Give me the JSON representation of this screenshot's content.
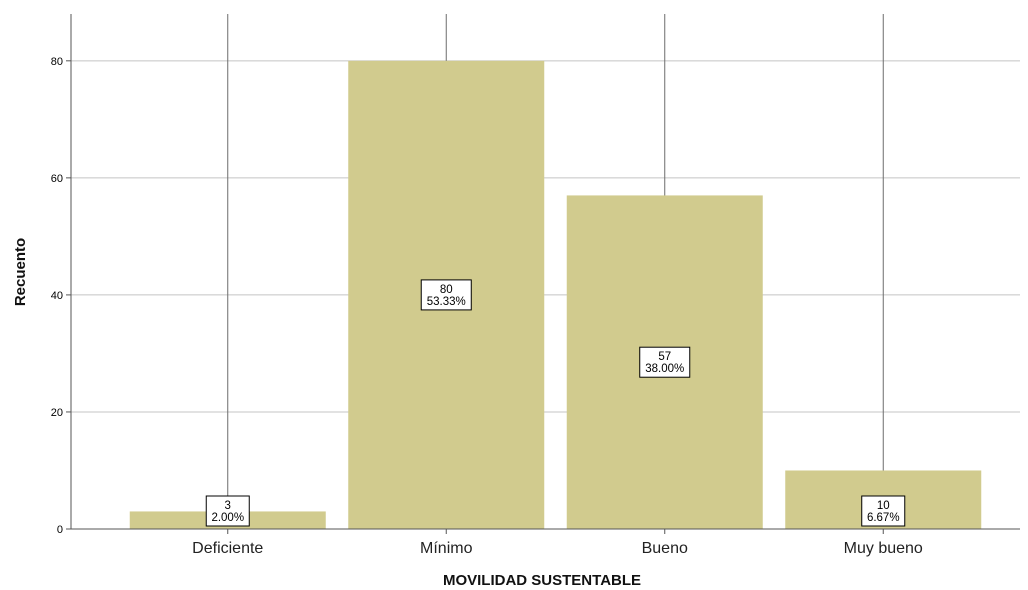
{
  "chart_data": {
    "type": "bar",
    "xlabel": "MOVILIDAD SUSTENTABLE",
    "ylabel": "Recuento",
    "ylim": [
      0,
      88
    ],
    "yticks": [
      0,
      20,
      40,
      60,
      80
    ],
    "grid": true,
    "categories": [
      "Deficiente",
      "Mínimo",
      "Bueno",
      "Muy bueno"
    ],
    "values": [
      3,
      80,
      57,
      10
    ],
    "data_labels": [
      {
        "count": "3",
        "percent": "2.00%"
      },
      {
        "count": "80",
        "percent": "53.33%"
      },
      {
        "count": "57",
        "percent": "38.00%"
      },
      {
        "count": "10",
        "percent": "6.67%"
      }
    ],
    "colors": {
      "bar": "#d1cb8e",
      "grid": "#c4c4c4",
      "axis": "#555555",
      "label_box_border": "#000000"
    }
  }
}
